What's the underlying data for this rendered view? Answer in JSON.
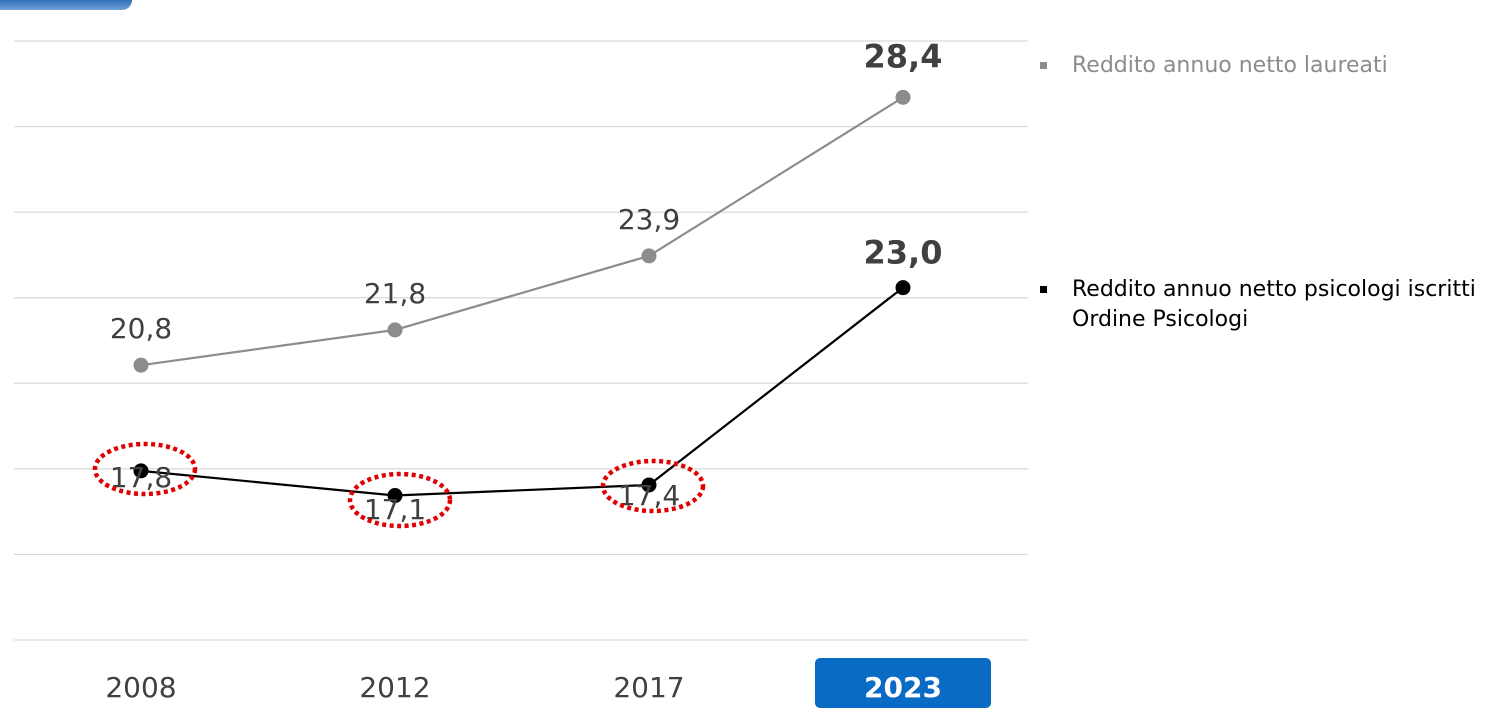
{
  "chart_data": {
    "type": "line",
    "categories": [
      "2008",
      "2012",
      "2017",
      "2023"
    ],
    "highlight_category": "2023",
    "ylim": [
      13,
      30
    ],
    "grid": true,
    "legend_position": "right",
    "series": [
      {
        "name": "Reddito annuo netto laureati",
        "values": [
          20.8,
          21.8,
          23.9,
          28.4
        ],
        "labels": [
          "20,8",
          "21,8",
          "23,9",
          "28,4"
        ],
        "color": "#8c8c8c"
      },
      {
        "name": "Reddito annuo netto psicologi iscritti Ordine Psicologi",
        "values": [
          17.8,
          17.1,
          17.4,
          23.0
        ],
        "labels": [
          "17,8",
          "17,1",
          "17,4",
          "23,0"
        ],
        "color": "#000000"
      }
    ],
    "circled_labels": [
      "17,8",
      "17,1",
      "17,4"
    ],
    "colors": {
      "grid": "#d9d9d9",
      "highlight_tab": "#0a6bc4",
      "circle": "#e00000"
    }
  }
}
